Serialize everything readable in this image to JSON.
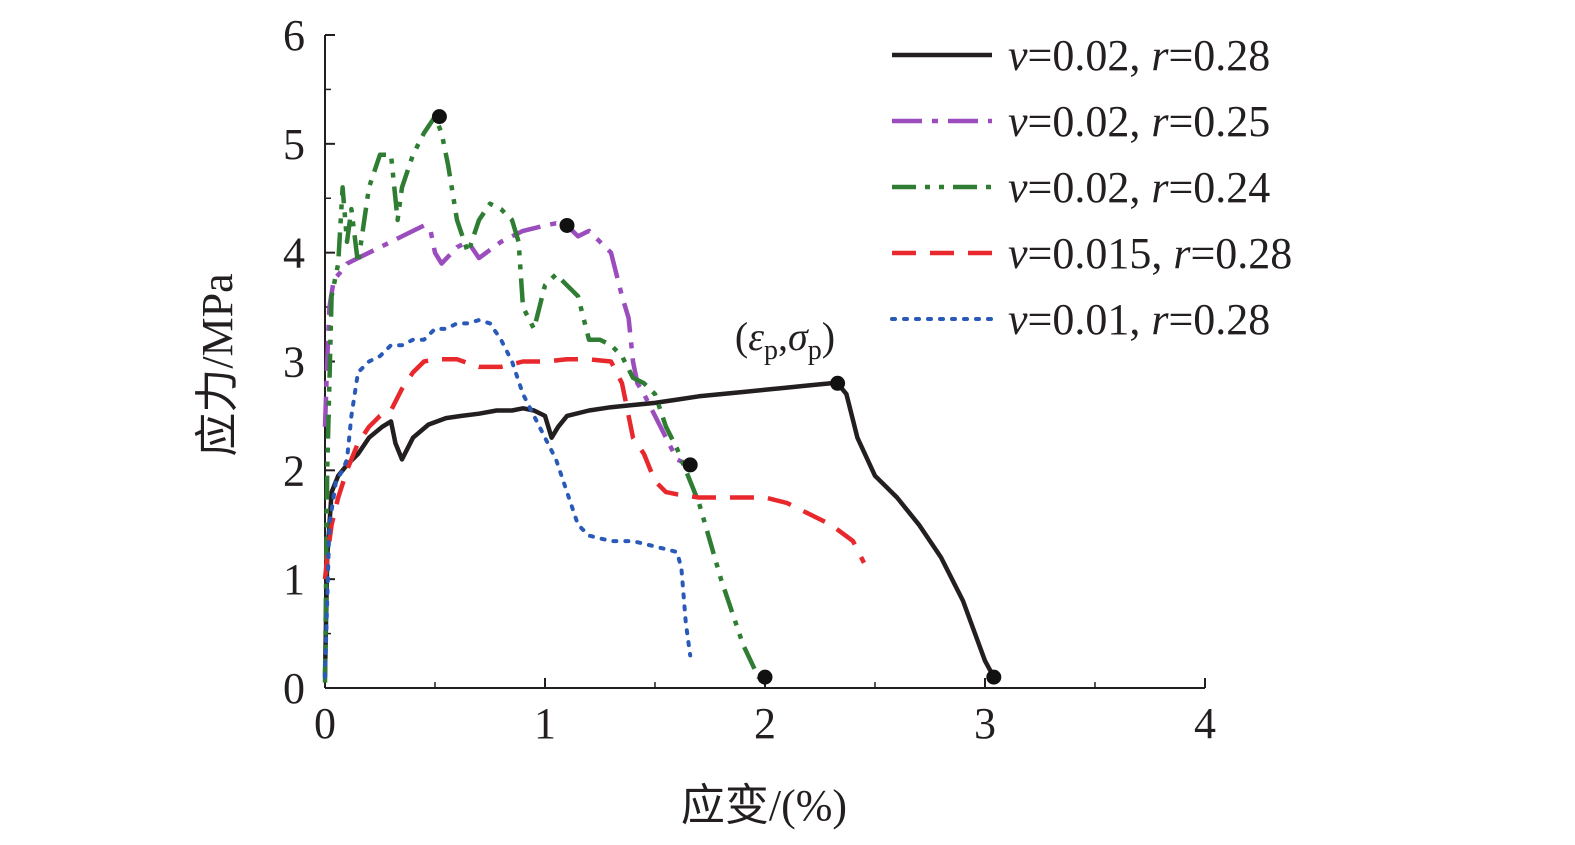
{
  "chart_data": {
    "type": "line",
    "title": "",
    "xlabel": "应变/(%)",
    "ylabel": "应力/MPa",
    "xlim": [
      0,
      4
    ],
    "ylim": [
      0,
      6
    ],
    "xticks": [
      0,
      1,
      2,
      3,
      4
    ],
    "yticks": [
      0,
      1,
      2,
      3,
      4,
      5,
      6
    ],
    "xtick_labels": [
      "0",
      "1",
      "2",
      "3",
      "4"
    ],
    "ytick_labels": [
      "0",
      "1",
      "2",
      "3",
      "4",
      "5",
      "6"
    ],
    "grid": false,
    "legend_position": "top-right",
    "series": [
      {
        "name": "v=0.02, r=0.28",
        "legend": {
          "v_sym": "v",
          "v_val": "=0.02, ",
          "r_sym": "r",
          "r_val": "=0.28"
        },
        "color": "#231f20",
        "style": "solid",
        "x": [
          0,
          0.01,
          0.03,
          0.06,
          0.1,
          0.15,
          0.2,
          0.26,
          0.3,
          0.32,
          0.35,
          0.4,
          0.47,
          0.55,
          0.62,
          0.7,
          0.78,
          0.85,
          0.9,
          0.95,
          1.0,
          1.03,
          1.06,
          1.1,
          1.2,
          1.3,
          1.4,
          1.5,
          1.6,
          1.7,
          1.8,
          1.9,
          2.0,
          2.1,
          2.2,
          2.3,
          2.33,
          2.37,
          2.42,
          2.5,
          2.6,
          2.7,
          2.8,
          2.9,
          3.0,
          3.04
        ],
        "y": [
          0.1,
          1.2,
          1.8,
          1.95,
          2.05,
          2.15,
          2.3,
          2.4,
          2.45,
          2.25,
          2.1,
          2.3,
          2.42,
          2.48,
          2.5,
          2.52,
          2.55,
          2.55,
          2.57,
          2.55,
          2.5,
          2.3,
          2.4,
          2.5,
          2.55,
          2.58,
          2.6,
          2.62,
          2.65,
          2.68,
          2.7,
          2.72,
          2.74,
          2.76,
          2.78,
          2.8,
          2.8,
          2.7,
          2.3,
          1.95,
          1.75,
          1.5,
          1.2,
          0.8,
          0.25,
          0.1
        ],
        "markers": [
          [
            2.33,
            2.8
          ],
          [
            3.04,
            0.1
          ]
        ]
      },
      {
        "name": "v=0.02, r=0.25",
        "legend": {
          "v_sym": "v",
          "v_val": "=0.02, ",
          "r_sym": "r",
          "r_val": "=0.25"
        },
        "color": "#9b4dbe",
        "style": "dashdot",
        "x": [
          0,
          0.01,
          0.02,
          0.04,
          0.07,
          0.1,
          0.15,
          0.2,
          0.3,
          0.4,
          0.45,
          0.48,
          0.5,
          0.53,
          0.6,
          0.65,
          0.7,
          0.8,
          0.9,
          1.0,
          1.05,
          1.1,
          1.15,
          1.2,
          1.25,
          1.3,
          1.35,
          1.38,
          1.4,
          1.42,
          1.45,
          1.5,
          1.55,
          1.6,
          1.65
        ],
        "y": [
          2.4,
          3.0,
          3.5,
          3.75,
          3.82,
          3.9,
          3.95,
          4.0,
          4.1,
          4.2,
          4.25,
          4.2,
          4.0,
          3.9,
          4.05,
          4.1,
          3.95,
          4.1,
          4.2,
          4.25,
          4.27,
          4.25,
          4.15,
          4.2,
          4.1,
          4.0,
          3.6,
          3.4,
          3.0,
          2.8,
          2.7,
          2.5,
          2.3,
          2.1,
          2.05
        ],
        "markers": [
          [
            1.1,
            4.25
          ],
          [
            1.66,
            2.05
          ]
        ]
      },
      {
        "name": "v=0.02, r=0.24",
        "legend": {
          "v_sym": "v",
          "v_val": "=0.02, ",
          "r_sym": "r",
          "r_val": "=0.24"
        },
        "color": "#2e7d32",
        "style": "dashdotdot",
        "x": [
          0,
          0.01,
          0.03,
          0.06,
          0.08,
          0.1,
          0.12,
          0.15,
          0.2,
          0.25,
          0.3,
          0.33,
          0.35,
          0.4,
          0.45,
          0.5,
          0.53,
          0.56,
          0.6,
          0.65,
          0.7,
          0.75,
          0.8,
          0.85,
          0.88,
          0.9,
          0.95,
          1.0,
          1.05,
          1.1,
          1.15,
          1.2,
          1.25,
          1.3,
          1.35,
          1.4,
          1.45,
          1.5,
          1.55,
          1.6,
          1.7,
          1.8,
          1.9,
          1.97,
          2.0
        ],
        "y": [
          0.05,
          2.0,
          3.6,
          3.9,
          4.6,
          4.1,
          4.4,
          3.9,
          4.6,
          4.9,
          4.9,
          4.3,
          4.6,
          4.9,
          5.1,
          5.25,
          5.1,
          4.8,
          4.3,
          4.0,
          4.3,
          4.45,
          4.4,
          4.3,
          4.1,
          3.5,
          3.3,
          3.7,
          3.8,
          3.7,
          3.6,
          3.2,
          3.2,
          3.15,
          3.05,
          2.85,
          2.8,
          2.7,
          2.4,
          2.2,
          1.7,
          1.0,
          0.4,
          0.1,
          0.1
        ],
        "markers": [
          [
            0.52,
            5.25
          ],
          [
            2.0,
            0.1
          ]
        ]
      },
      {
        "name": "v=0.015, r=0.28",
        "legend": {
          "v_sym": "v",
          "v_val": "=0.015, ",
          "r_sym": "r",
          "r_val": "=0.28"
        },
        "color": "#e8282c",
        "style": "dashed",
        "x": [
          0,
          0.01,
          0.03,
          0.06,
          0.1,
          0.15,
          0.2,
          0.25,
          0.3,
          0.35,
          0.4,
          0.45,
          0.5,
          0.6,
          0.7,
          0.8,
          0.9,
          1.0,
          1.1,
          1.2,
          1.3,
          1.35,
          1.4,
          1.45,
          1.5,
          1.55,
          1.6,
          1.7,
          1.8,
          1.9,
          2.0,
          2.1,
          2.2,
          2.3,
          2.4,
          2.45
        ],
        "y": [
          1.0,
          1.2,
          1.5,
          1.75,
          2.0,
          2.25,
          2.4,
          2.5,
          2.55,
          2.75,
          2.9,
          3.0,
          3.02,
          3.02,
          2.95,
          2.95,
          3.0,
          3.0,
          3.02,
          3.02,
          3.0,
          2.8,
          2.3,
          2.15,
          1.9,
          1.8,
          1.78,
          1.75,
          1.75,
          1.75,
          1.75,
          1.7,
          1.6,
          1.5,
          1.35,
          1.15
        ],
        "markers": []
      },
      {
        "name": "v=0.01, r=0.28",
        "legend": {
          "v_sym": "v",
          "v_val": "=0.01, ",
          "r_sym": "r",
          "r_val": "=0.28"
        },
        "color": "#2a5ab8",
        "style": "dotted",
        "x": [
          0,
          0.02,
          0.05,
          0.08,
          0.1,
          0.12,
          0.15,
          0.2,
          0.25,
          0.3,
          0.35,
          0.4,
          0.45,
          0.5,
          0.55,
          0.6,
          0.65,
          0.7,
          0.75,
          0.8,
          0.85,
          0.9,
          0.95,
          1.0,
          1.05,
          1.1,
          1.15,
          1.2,
          1.3,
          1.4,
          1.5,
          1.6,
          1.62,
          1.64,
          1.66
        ],
        "y": [
          0.1,
          1.5,
          1.9,
          2.0,
          2.1,
          2.5,
          2.9,
          3.0,
          3.05,
          3.15,
          3.15,
          3.2,
          3.2,
          3.3,
          3.3,
          3.35,
          3.35,
          3.38,
          3.35,
          3.2,
          3.0,
          2.7,
          2.5,
          2.3,
          2.1,
          1.8,
          1.5,
          1.4,
          1.35,
          1.35,
          1.3,
          1.25,
          1.1,
          0.6,
          0.3
        ],
        "markers": []
      }
    ],
    "annotations": [
      {
        "eps": "ε",
        "sigma": "σ",
        "sub": "p",
        "x": 2.33,
        "y": 2.8
      }
    ]
  }
}
